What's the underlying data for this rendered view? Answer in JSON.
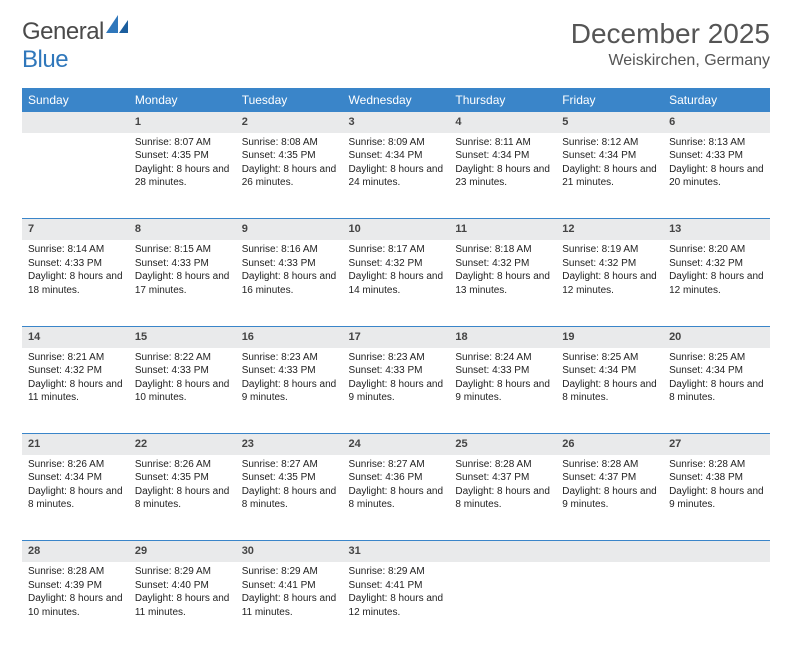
{
  "logo": {
    "word1": "General",
    "word2": "Blue"
  },
  "title": "December 2025",
  "location": "Weiskirchen, Germany",
  "colors": {
    "header_bg": "#3a85c9",
    "header_text": "#ffffff",
    "daynum_bg": "#e9eaeb",
    "rule": "#3a85c9",
    "text": "#222222",
    "logo_gray": "#4a4a4a",
    "logo_blue": "#2f77bb"
  },
  "layout": {
    "cols": 7,
    "rows": 5,
    "col_width_pct": 14.28
  },
  "fonts": {
    "title_pt": 28,
    "location_pt": 16,
    "dayhead_pt": 12,
    "daynum_pt": 11,
    "body_pt": 10
  },
  "day_headers": [
    "Sunday",
    "Monday",
    "Tuesday",
    "Wednesday",
    "Thursday",
    "Friday",
    "Saturday"
  ],
  "weeks": [
    [
      {
        "n": "",
        "sr": "",
        "ss": "",
        "dl": ""
      },
      {
        "n": "1",
        "sr": "8:07 AM",
        "ss": "4:35 PM",
        "dl": "8 hours and 28 minutes."
      },
      {
        "n": "2",
        "sr": "8:08 AM",
        "ss": "4:35 PM",
        "dl": "8 hours and 26 minutes."
      },
      {
        "n": "3",
        "sr": "8:09 AM",
        "ss": "4:34 PM",
        "dl": "8 hours and 24 minutes."
      },
      {
        "n": "4",
        "sr": "8:11 AM",
        "ss": "4:34 PM",
        "dl": "8 hours and 23 minutes."
      },
      {
        "n": "5",
        "sr": "8:12 AM",
        "ss": "4:34 PM",
        "dl": "8 hours and 21 minutes."
      },
      {
        "n": "6",
        "sr": "8:13 AM",
        "ss": "4:33 PM",
        "dl": "8 hours and 20 minutes."
      }
    ],
    [
      {
        "n": "7",
        "sr": "8:14 AM",
        "ss": "4:33 PM",
        "dl": "8 hours and 18 minutes."
      },
      {
        "n": "8",
        "sr": "8:15 AM",
        "ss": "4:33 PM",
        "dl": "8 hours and 17 minutes."
      },
      {
        "n": "9",
        "sr": "8:16 AM",
        "ss": "4:33 PM",
        "dl": "8 hours and 16 minutes."
      },
      {
        "n": "10",
        "sr": "8:17 AM",
        "ss": "4:32 PM",
        "dl": "8 hours and 14 minutes."
      },
      {
        "n": "11",
        "sr": "8:18 AM",
        "ss": "4:32 PM",
        "dl": "8 hours and 13 minutes."
      },
      {
        "n": "12",
        "sr": "8:19 AM",
        "ss": "4:32 PM",
        "dl": "8 hours and 12 minutes."
      },
      {
        "n": "13",
        "sr": "8:20 AM",
        "ss": "4:32 PM",
        "dl": "8 hours and 12 minutes."
      }
    ],
    [
      {
        "n": "14",
        "sr": "8:21 AM",
        "ss": "4:32 PM",
        "dl": "8 hours and 11 minutes."
      },
      {
        "n": "15",
        "sr": "8:22 AM",
        "ss": "4:33 PM",
        "dl": "8 hours and 10 minutes."
      },
      {
        "n": "16",
        "sr": "8:23 AM",
        "ss": "4:33 PM",
        "dl": "8 hours and 9 minutes."
      },
      {
        "n": "17",
        "sr": "8:23 AM",
        "ss": "4:33 PM",
        "dl": "8 hours and 9 minutes."
      },
      {
        "n": "18",
        "sr": "8:24 AM",
        "ss": "4:33 PM",
        "dl": "8 hours and 9 minutes."
      },
      {
        "n": "19",
        "sr": "8:25 AM",
        "ss": "4:34 PM",
        "dl": "8 hours and 8 minutes."
      },
      {
        "n": "20",
        "sr": "8:25 AM",
        "ss": "4:34 PM",
        "dl": "8 hours and 8 minutes."
      }
    ],
    [
      {
        "n": "21",
        "sr": "8:26 AM",
        "ss": "4:34 PM",
        "dl": "8 hours and 8 minutes."
      },
      {
        "n": "22",
        "sr": "8:26 AM",
        "ss": "4:35 PM",
        "dl": "8 hours and 8 minutes."
      },
      {
        "n": "23",
        "sr": "8:27 AM",
        "ss": "4:35 PM",
        "dl": "8 hours and 8 minutes."
      },
      {
        "n": "24",
        "sr": "8:27 AM",
        "ss": "4:36 PM",
        "dl": "8 hours and 8 minutes."
      },
      {
        "n": "25",
        "sr": "8:28 AM",
        "ss": "4:37 PM",
        "dl": "8 hours and 8 minutes."
      },
      {
        "n": "26",
        "sr": "8:28 AM",
        "ss": "4:37 PM",
        "dl": "8 hours and 9 minutes."
      },
      {
        "n": "27",
        "sr": "8:28 AM",
        "ss": "4:38 PM",
        "dl": "8 hours and 9 minutes."
      }
    ],
    [
      {
        "n": "28",
        "sr": "8:28 AM",
        "ss": "4:39 PM",
        "dl": "8 hours and 10 minutes."
      },
      {
        "n": "29",
        "sr": "8:29 AM",
        "ss": "4:40 PM",
        "dl": "8 hours and 11 minutes."
      },
      {
        "n": "30",
        "sr": "8:29 AM",
        "ss": "4:41 PM",
        "dl": "8 hours and 11 minutes."
      },
      {
        "n": "31",
        "sr": "8:29 AM",
        "ss": "4:41 PM",
        "dl": "8 hours and 12 minutes."
      },
      {
        "n": "",
        "sr": "",
        "ss": "",
        "dl": ""
      },
      {
        "n": "",
        "sr": "",
        "ss": "",
        "dl": ""
      },
      {
        "n": "",
        "sr": "",
        "ss": "",
        "dl": ""
      }
    ]
  ],
  "labels": {
    "sunrise": "Sunrise:",
    "sunset": "Sunset:",
    "daylight": "Daylight:"
  }
}
